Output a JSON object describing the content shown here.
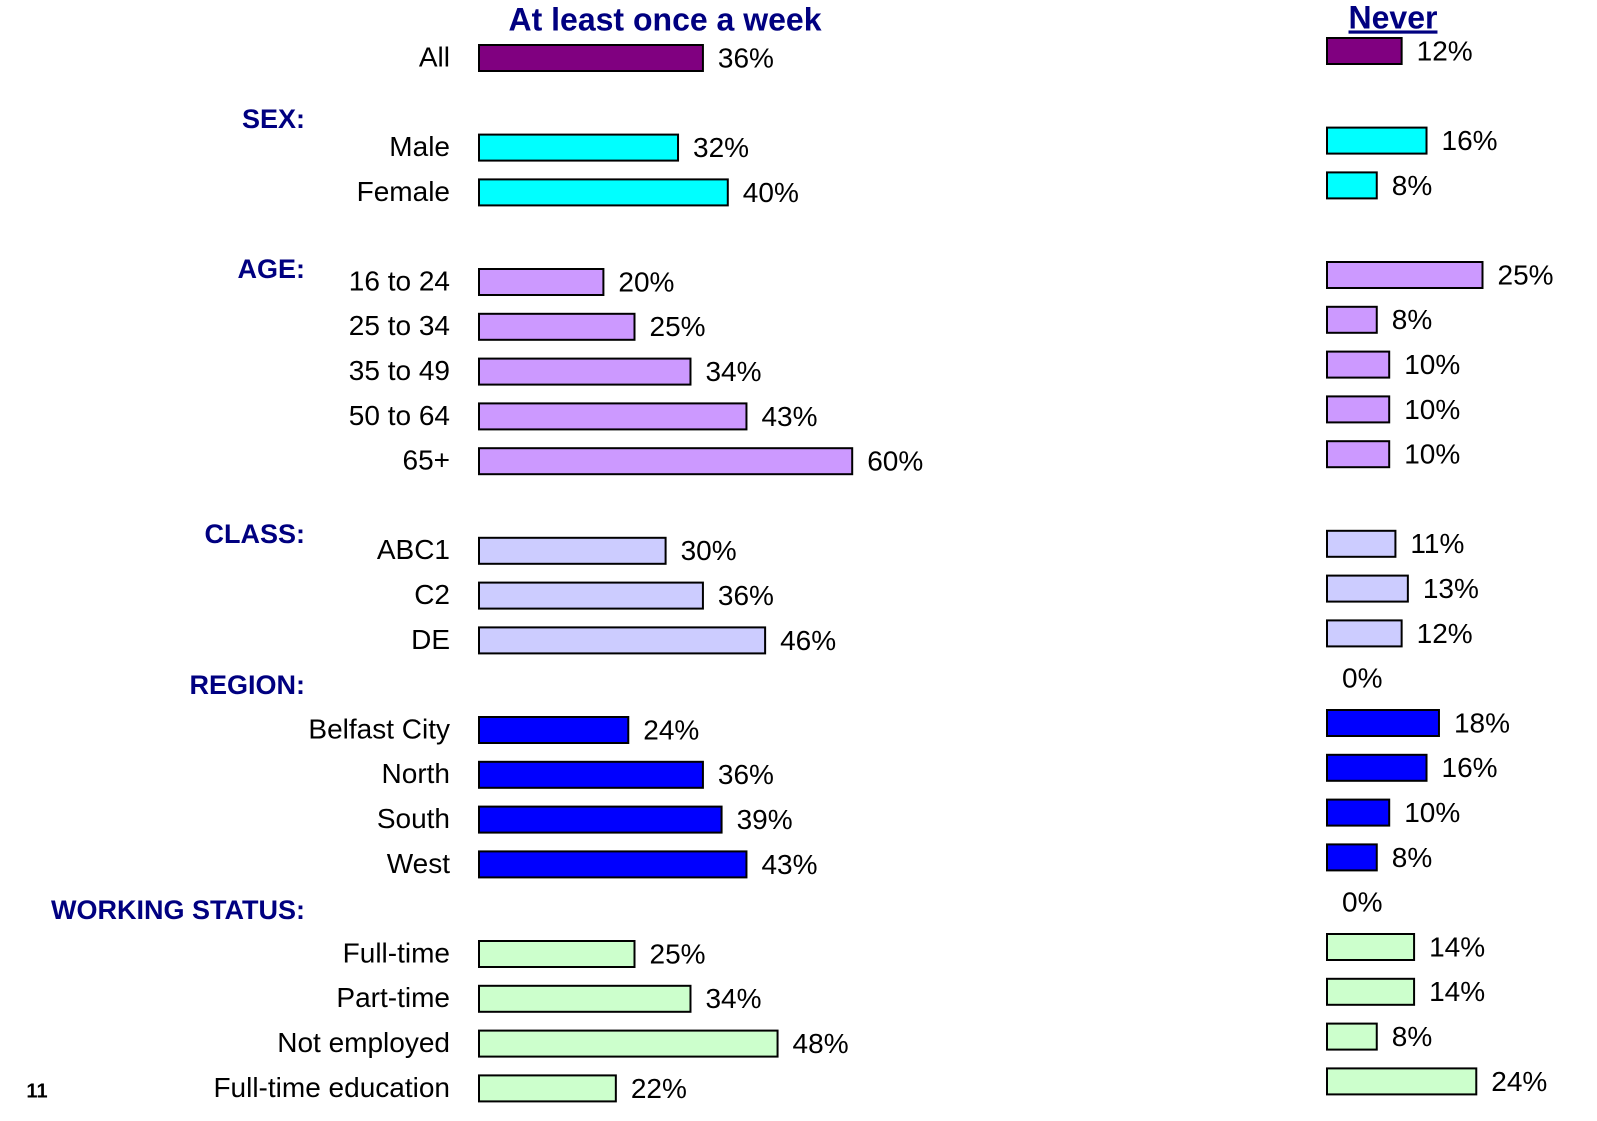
{
  "chart_data": {
    "type": "bar",
    "page_number": "11",
    "groups": [
      "SEX:",
      "AGE:",
      "CLASS:",
      "REGION:",
      "WORKING STATUS:"
    ],
    "categories": [
      "All",
      null,
      "Male",
      "Female",
      null,
      "16 to 24",
      "25 to 34",
      "35 to 49",
      "50 to 64",
      "65+",
      null,
      "ABC1",
      "C2",
      "DE",
      null,
      "Belfast City",
      "North",
      "South",
      "West",
      null,
      "Full-time",
      "Part-time",
      "Not employed",
      "Full-time education"
    ],
    "colors": [
      "#800080",
      null,
      "#00ffff",
      "#00ffff",
      null,
      "#cc99ff",
      "#cc99ff",
      "#cc99ff",
      "#cc99ff",
      "#cc99ff",
      null,
      "#ccccff",
      "#ccccff",
      "#ccccff",
      null,
      "#0000ff",
      "#0000ff",
      "#0000ff",
      "#0000ff",
      null,
      "#ccffcc",
      "#ccffcc",
      "#ccffcc",
      "#ccffcc"
    ],
    "series": [
      {
        "name": "At least once a week",
        "values": [
          36,
          null,
          32,
          40,
          null,
          20,
          25,
          34,
          43,
          60,
          null,
          30,
          36,
          46,
          null,
          24,
          36,
          39,
          43,
          null,
          25,
          34,
          48,
          22
        ],
        "value_labels": [
          "36%",
          null,
          "32%",
          "40%",
          null,
          "20%",
          "25%",
          "34%",
          "43%",
          "60%",
          null,
          "30%",
          "36%",
          "46%",
          null,
          "24%",
          "36%",
          "39%",
          "43%",
          null,
          "25%",
          "34%",
          "48%",
          "22%"
        ]
      },
      {
        "name": "Never",
        "values": [
          12,
          null,
          16,
          8,
          null,
          25,
          8,
          10,
          10,
          10,
          null,
          11,
          13,
          12,
          0,
          18,
          16,
          10,
          8,
          0,
          14,
          14,
          8,
          24
        ],
        "value_labels": [
          "12%",
          null,
          "16%",
          "8%",
          null,
          "25%",
          "8%",
          "10%",
          "10%",
          "10%",
          null,
          "11%",
          "13%",
          "12%",
          "0%",
          "18%",
          "16%",
          "10%",
          "8%",
          "0%",
          "14%",
          "14%",
          "8%",
          "24%"
        ]
      }
    ]
  }
}
